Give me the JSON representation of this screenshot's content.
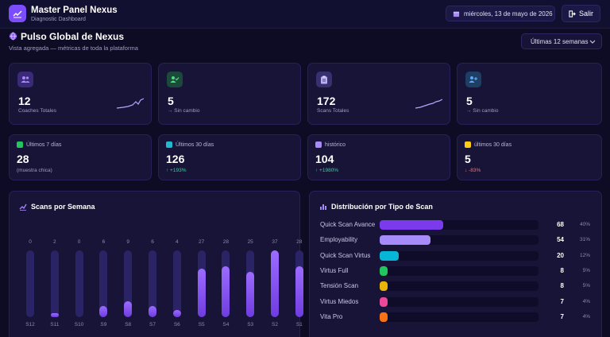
{
  "header": {
    "app_title": "Master Panel Nexus",
    "app_subtitle": "Diagnostic Dashboard",
    "date": "miércoles, 13 de mayo de 2026",
    "logout_label": "Salir"
  },
  "section": {
    "title": "Pulso Global de Nexus",
    "subtitle": "Vista agregada — métricas de toda la plataforma",
    "range_selected": "Últimas 12 semanas"
  },
  "kpis": [
    {
      "value": "12",
      "label": "Coaches Totales",
      "icon": "users-icon",
      "color": "#7c4dff"
    },
    {
      "value": "5",
      "label": "→ Sin cambio",
      "icon": "user-check-icon",
      "color": "#1f9d55"
    },
    {
      "value": "172",
      "label": "Scans Totales",
      "icon": "clipboard-icon",
      "color": "#6d5ce0"
    },
    {
      "value": "5",
      "label": "→ Sin cambio",
      "icon": "user-add-icon",
      "color": "#2d8ccf"
    }
  ],
  "mini_stats": [
    {
      "header": "Últimos 7 días",
      "value": "28",
      "sub": "(muestra chica)",
      "icon": "chart-icon",
      "color": "#22c55e",
      "sub_color": "#a09cc0"
    },
    {
      "header": "Últimos 30 días",
      "value": "126",
      "sub": "↑ +193%",
      "icon": "calendar-icon",
      "color": "#22b8cf",
      "sub_color": "#34d399"
    },
    {
      "header": "histórico",
      "value": "104",
      "sub": "↑ +1980%",
      "icon": "user-plus-icon",
      "color": "#a78bfa",
      "sub_color": "#34d399"
    },
    {
      "header": "últimos 30 días",
      "value": "5",
      "sub": "↓ -83%",
      "icon": "note-icon",
      "color": "#facc15",
      "sub_color": "#f87171"
    }
  ],
  "weekly": {
    "title": "Scans por Semana"
  },
  "chart_data": [
    {
      "type": "bar",
      "title": "Scans por Semana",
      "categories": [
        "S12",
        "S11",
        "S10",
        "S9",
        "S8",
        "S7",
        "S6",
        "S5",
        "S4",
        "S3",
        "S2",
        "S1"
      ],
      "values": [
        0,
        2,
        0,
        6,
        9,
        6,
        4,
        27,
        28,
        25,
        37,
        28
      ],
      "ylim": [
        0,
        37
      ]
    },
    {
      "type": "bar",
      "title": "Distribución por Tipo de Scan",
      "categories": [
        "Quick Scan Avance",
        "Employability",
        "Quick Scan Virtus",
        "Virtus Full",
        "Tensión Scan",
        "Virtus Miedos",
        "Vita Pro"
      ],
      "values": [
        68,
        54,
        20,
        8,
        8,
        7,
        7
      ],
      "percentages": [
        "40%",
        "31%",
        "12%",
        "5%",
        "5%",
        "4%",
        "4%"
      ],
      "colors": [
        "#7c3aed",
        "#a78bfa",
        "#06b6d4",
        "#22c55e",
        "#eab308",
        "#ec4899",
        "#f97316"
      ]
    }
  ],
  "distribution": {
    "title": "Distribución por Tipo de Scan"
  }
}
